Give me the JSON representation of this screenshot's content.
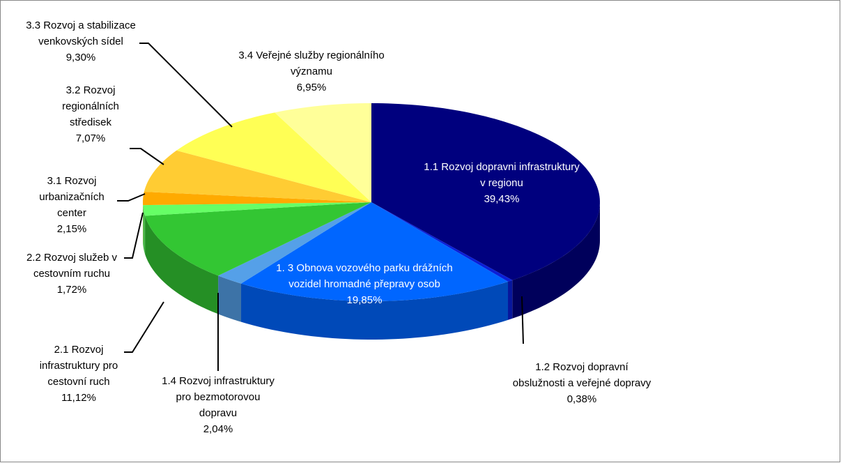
{
  "chart_data": {
    "type": "pie3d",
    "categories": [
      "1.1 Rozvoj dopravni infrastruktury v regionu",
      "1.2 Rozvoj dopravní obslužnosti a veřejné dopravy",
      "1. 3 Obnova vozového parku drážních vozidel hromadné přepravy osob",
      "1.4 Rozvoj infrastruktury pro bezmotorovou dopravu",
      "2.1 Rozvoj infrastruktury pro cestovní ruch",
      "2.2 Rozvoj služeb v cestovním ruchu",
      "3.1 Rozvoj urbanizačních center",
      "3.2 Rozvoj regionálních středisek",
      "3.3 Rozvoj a stabilizace venkovských sídel",
      "3.4 Veřejné služby regionálního významu"
    ],
    "values": [
      39.43,
      0.38,
      19.85,
      2.04,
      11.12,
      1.72,
      2.15,
      7.07,
      9.3,
      6.95
    ],
    "value_labels": [
      "39,43%",
      "0,38%",
      "19,85%",
      "2,04%",
      "11,12%",
      "1,72%",
      "2,15%",
      "7,07%",
      "9,30%",
      "6,95%"
    ],
    "colors": [
      "#00007e",
      "#0a1fd8",
      "#0066ff",
      "#55a0e8",
      "#33c633",
      "#66ff66",
      "#ffaa00",
      "#ffcc33",
      "#ffff55",
      "#ffff99"
    ]
  }
}
